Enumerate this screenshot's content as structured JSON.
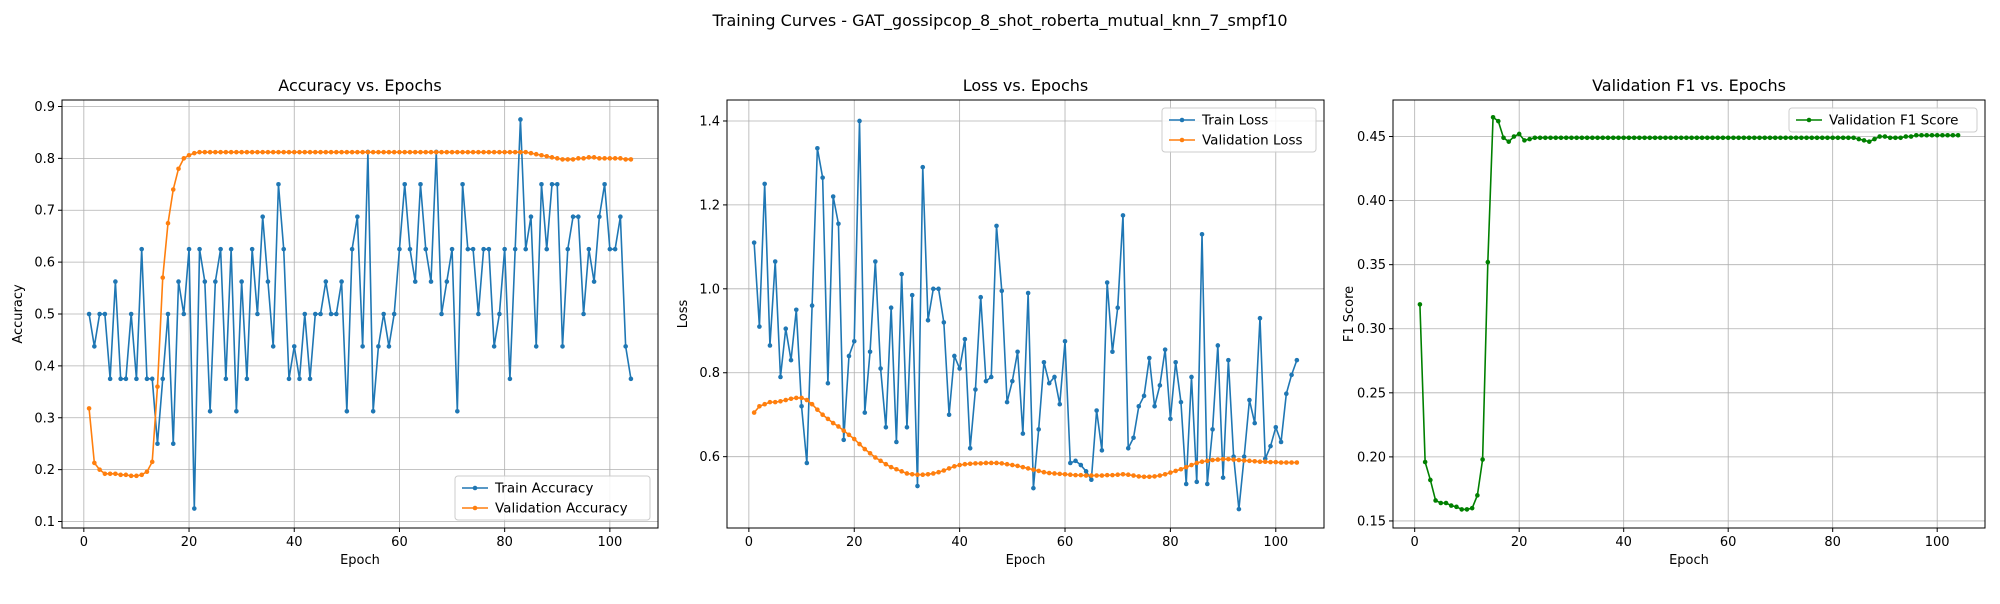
{
  "figure": {
    "suptitle": "Training Curves - GAT_gossipcop_8_shot_roberta_mutual_knn_7_smpf10"
  },
  "colors": {
    "train": "#1f77b4",
    "validation": "#ff7f0e",
    "f1": "#008000",
    "grid": "#b0b0b0",
    "axes": "#000000"
  },
  "chart_data": [
    {
      "type": "line",
      "title": "Accuracy vs. Epochs",
      "xlabel": "Epoch",
      "ylabel": "Accuracy",
      "xlim": [
        -4.15,
        109.15
      ],
      "ylim": [
        0.0875,
        0.9125
      ],
      "xticks": [
        0,
        20,
        40,
        60,
        80,
        100
      ],
      "yticks": [
        0.1,
        0.2,
        0.3,
        0.4,
        0.5,
        0.6,
        0.7,
        0.8,
        0.9
      ],
      "ytick_labels": [
        "0.1",
        "0.2",
        "0.3",
        "0.4",
        "0.5",
        "0.6",
        "0.7",
        "0.8",
        "0.9"
      ],
      "grid": true,
      "legend": "lower right",
      "x": [
        1,
        2,
        3,
        4,
        5,
        6,
        7,
        8,
        9,
        10,
        11,
        12,
        13,
        14,
        15,
        16,
        17,
        18,
        19,
        20,
        21,
        22,
        23,
        24,
        25,
        26,
        27,
        28,
        29,
        30,
        31,
        32,
        33,
        34,
        35,
        36,
        37,
        38,
        39,
        40,
        41,
        42,
        43,
        44,
        45,
        46,
        47,
        48,
        49,
        50,
        51,
        52,
        53,
        54,
        55,
        56,
        57,
        58,
        59,
        60,
        61,
        62,
        63,
        64,
        65,
        66,
        67,
        68,
        69,
        70,
        71,
        72,
        73,
        74,
        75,
        76,
        77,
        78,
        79,
        80,
        81,
        82,
        83,
        84,
        85,
        86,
        87,
        88,
        89,
        90,
        91,
        92,
        93,
        94,
        95,
        96,
        97,
        98,
        99,
        100,
        101,
        102,
        103,
        104
      ],
      "series": [
        {
          "name": "Train Accuracy",
          "color": "#1f77b4",
          "values": [
            0.5,
            0.4375,
            0.5,
            0.5,
            0.375,
            0.5625,
            0.375,
            0.375,
            0.5,
            0.375,
            0.625,
            0.375,
            0.375,
            0.25,
            0.375,
            0.5,
            0.25,
            0.5625,
            0.5,
            0.625,
            0.125,
            0.625,
            0.5625,
            0.3125,
            0.5625,
            0.625,
            0.375,
            0.625,
            0.3125,
            0.5625,
            0.375,
            0.625,
            0.5,
            0.6875,
            0.5625,
            0.4375,
            0.75,
            0.625,
            0.375,
            0.4375,
            0.375,
            0.5,
            0.375,
            0.5,
            0.5,
            0.5625,
            0.5,
            0.5,
            0.5625,
            0.3125,
            0.625,
            0.6875,
            0.4375,
            0.8125,
            0.3125,
            0.4375,
            0.5,
            0.4375,
            0.5,
            0.625,
            0.75,
            0.625,
            0.5625,
            0.75,
            0.625,
            0.5625,
            0.8125,
            0.5,
            0.5625,
            0.625,
            0.3125,
            0.75,
            0.625,
            0.625,
            0.5,
            0.625,
            0.625,
            0.4375,
            0.5,
            0.625,
            0.375,
            0.625,
            0.875,
            0.625,
            0.6875,
            0.4375,
            0.75,
            0.625,
            0.75,
            0.75,
            0.4375,
            0.625,
            0.6875,
            0.6875,
            0.5,
            0.625,
            0.5625,
            0.6875,
            0.75,
            0.625,
            0.625,
            0.6875,
            0.4375,
            0.375
          ]
        },
        {
          "name": "Validation Accuracy",
          "color": "#ff7f0e",
          "values": [
            0.318,
            0.213,
            0.2,
            0.192,
            0.192,
            0.192,
            0.19,
            0.19,
            0.188,
            0.188,
            0.19,
            0.196,
            0.215,
            0.36,
            0.57,
            0.675,
            0.74,
            0.78,
            0.8,
            0.806,
            0.81,
            0.812,
            0.812,
            0.812,
            0.812,
            0.812,
            0.812,
            0.812,
            0.812,
            0.812,
            0.812,
            0.812,
            0.812,
            0.812,
            0.812,
            0.812,
            0.812,
            0.812,
            0.812,
            0.812,
            0.812,
            0.812,
            0.812,
            0.812,
            0.812,
            0.812,
            0.812,
            0.812,
            0.812,
            0.812,
            0.812,
            0.812,
            0.812,
            0.812,
            0.812,
            0.812,
            0.812,
            0.812,
            0.812,
            0.812,
            0.812,
            0.812,
            0.812,
            0.812,
            0.812,
            0.812,
            0.812,
            0.812,
            0.812,
            0.812,
            0.812,
            0.812,
            0.812,
            0.812,
            0.812,
            0.812,
            0.812,
            0.812,
            0.812,
            0.812,
            0.812,
            0.812,
            0.812,
            0.812,
            0.81,
            0.808,
            0.806,
            0.804,
            0.802,
            0.8,
            0.798,
            0.798,
            0.798,
            0.8,
            0.8,
            0.802,
            0.802,
            0.8,
            0.8,
            0.8,
            0.8,
            0.8,
            0.798,
            0.798
          ]
        }
      ]
    },
    {
      "type": "line",
      "title": "Loss vs. Epochs",
      "xlabel": "Epoch",
      "ylabel": "Loss",
      "xlim": [
        -4.15,
        109.15
      ],
      "ylim": [
        0.43,
        1.45
      ],
      "xticks": [
        0,
        20,
        40,
        60,
        80,
        100
      ],
      "yticks": [
        0.6,
        0.8,
        1.0,
        1.2,
        1.4
      ],
      "ytick_labels": [
        "0.6",
        "0.8",
        "1.0",
        "1.2",
        "1.4"
      ],
      "grid": true,
      "legend": "upper right",
      "x": [
        1,
        2,
        3,
        4,
        5,
        6,
        7,
        8,
        9,
        10,
        11,
        12,
        13,
        14,
        15,
        16,
        17,
        18,
        19,
        20,
        21,
        22,
        23,
        24,
        25,
        26,
        27,
        28,
        29,
        30,
        31,
        32,
        33,
        34,
        35,
        36,
        37,
        38,
        39,
        40,
        41,
        42,
        43,
        44,
        45,
        46,
        47,
        48,
        49,
        50,
        51,
        52,
        53,
        54,
        55,
        56,
        57,
        58,
        59,
        60,
        61,
        62,
        63,
        64,
        65,
        66,
        67,
        68,
        69,
        70,
        71,
        72,
        73,
        74,
        75,
        76,
        77,
        78,
        79,
        80,
        81,
        82,
        83,
        84,
        85,
        86,
        87,
        88,
        89,
        90,
        91,
        92,
        93,
        94,
        95,
        96,
        97,
        98,
        99,
        100,
        101,
        102,
        103,
        104
      ],
      "series": [
        {
          "name": "Train Loss",
          "color": "#1f77b4",
          "values": [
            1.11,
            0.91,
            1.25,
            0.865,
            1.065,
            0.79,
            0.905,
            0.83,
            0.95,
            0.72,
            0.585,
            0.96,
            1.335,
            1.265,
            0.775,
            1.22,
            1.155,
            0.64,
            0.84,
            0.875,
            1.4,
            0.705,
            0.85,
            1.065,
            0.81,
            0.67,
            0.955,
            0.635,
            1.035,
            0.67,
            0.985,
            0.53,
            1.29,
            0.925,
            1.0,
            1.0,
            0.92,
            0.7,
            0.84,
            0.81,
            0.88,
            0.62,
            0.76,
            0.98,
            0.78,
            0.79,
            1.15,
            0.995,
            0.73,
            0.78,
            0.85,
            0.655,
            0.99,
            0.525,
            0.665,
            0.825,
            0.775,
            0.79,
            0.725,
            0.875,
            0.585,
            0.59,
            0.58,
            0.565,
            0.545,
            0.71,
            0.615,
            1.015,
            0.85,
            0.955,
            1.175,
            0.62,
            0.645,
            0.72,
            0.745,
            0.835,
            0.72,
            0.77,
            0.855,
            0.69,
            0.825,
            0.73,
            0.535,
            0.79,
            0.54,
            1.13,
            0.535,
            0.665,
            0.865,
            0.55,
            0.83,
            0.6,
            0.475,
            0.6,
            0.735,
            0.68,
            0.93,
            0.595,
            0.625,
            0.67,
            0.635,
            0.75,
            0.795,
            0.83
          ]
        },
        {
          "name": "Validation Loss",
          "color": "#ff7f0e",
          "values": [
            0.705,
            0.72,
            0.725,
            0.73,
            0.73,
            0.732,
            0.735,
            0.738,
            0.74,
            0.74,
            0.735,
            0.725,
            0.712,
            0.7,
            0.69,
            0.68,
            0.672,
            0.662,
            0.652,
            0.642,
            0.63,
            0.618,
            0.608,
            0.598,
            0.59,
            0.582,
            0.575,
            0.57,
            0.565,
            0.56,
            0.558,
            0.557,
            0.557,
            0.558,
            0.56,
            0.563,
            0.567,
            0.572,
            0.577,
            0.58,
            0.582,
            0.583,
            0.584,
            0.584,
            0.585,
            0.585,
            0.585,
            0.584,
            0.582,
            0.58,
            0.578,
            0.575,
            0.572,
            0.569,
            0.566,
            0.563,
            0.561,
            0.56,
            0.559,
            0.558,
            0.557,
            0.556,
            0.556,
            0.555,
            0.555,
            0.555,
            0.555,
            0.556,
            0.556,
            0.557,
            0.558,
            0.557,
            0.555,
            0.553,
            0.552,
            0.552,
            0.553,
            0.555,
            0.558,
            0.562,
            0.566,
            0.57,
            0.575,
            0.58,
            0.585,
            0.588,
            0.59,
            0.592,
            0.593,
            0.594,
            0.594,
            0.593,
            0.592,
            0.591,
            0.59,
            0.589,
            0.588,
            0.588,
            0.587,
            0.587,
            0.586,
            0.586,
            0.586,
            0.586
          ]
        }
      ]
    },
    {
      "type": "line",
      "title": "Validation F1 vs. Epochs",
      "xlabel": "Epoch",
      "ylabel": "F1 Score",
      "xlim": [
        -4.15,
        109.15
      ],
      "ylim": [
        0.1445,
        0.4785
      ],
      "xticks": [
        0,
        20,
        40,
        60,
        80,
        100
      ],
      "yticks": [
        0.15,
        0.2,
        0.25,
        0.3,
        0.35,
        0.4,
        0.45
      ],
      "ytick_labels": [
        "0.15",
        "0.20",
        "0.25",
        "0.30",
        "0.35",
        "0.40",
        "0.45"
      ],
      "grid": true,
      "legend": "upper right",
      "x": [
        1,
        2,
        3,
        4,
        5,
        6,
        7,
        8,
        9,
        10,
        11,
        12,
        13,
        14,
        15,
        16,
        17,
        18,
        19,
        20,
        21,
        22,
        23,
        24,
        25,
        26,
        27,
        28,
        29,
        30,
        31,
        32,
        33,
        34,
        35,
        36,
        37,
        38,
        39,
        40,
        41,
        42,
        43,
        44,
        45,
        46,
        47,
        48,
        49,
        50,
        51,
        52,
        53,
        54,
        55,
        56,
        57,
        58,
        59,
        60,
        61,
        62,
        63,
        64,
        65,
        66,
        67,
        68,
        69,
        70,
        71,
        72,
        73,
        74,
        75,
        76,
        77,
        78,
        79,
        80,
        81,
        82,
        83,
        84,
        85,
        86,
        87,
        88,
        89,
        90,
        91,
        92,
        93,
        94,
        95,
        96,
        97,
        98,
        99,
        100,
        101,
        102,
        103,
        104
      ],
      "series": [
        {
          "name": "Validation F1 Score",
          "color": "#008000",
          "values": [
            0.319,
            0.196,
            0.182,
            0.166,
            0.164,
            0.164,
            0.162,
            0.161,
            0.159,
            0.159,
            0.16,
            0.17,
            0.198,
            0.352,
            0.465,
            0.462,
            0.449,
            0.446,
            0.45,
            0.452,
            0.447,
            0.448,
            0.449,
            0.449,
            0.449,
            0.449,
            0.449,
            0.449,
            0.449,
            0.449,
            0.449,
            0.449,
            0.449,
            0.449,
            0.449,
            0.449,
            0.449,
            0.449,
            0.449,
            0.449,
            0.449,
            0.449,
            0.449,
            0.449,
            0.449,
            0.449,
            0.449,
            0.449,
            0.449,
            0.449,
            0.449,
            0.449,
            0.449,
            0.449,
            0.449,
            0.449,
            0.449,
            0.449,
            0.449,
            0.449,
            0.449,
            0.449,
            0.449,
            0.449,
            0.449,
            0.449,
            0.449,
            0.449,
            0.449,
            0.449,
            0.449,
            0.449,
            0.449,
            0.449,
            0.449,
            0.449,
            0.449,
            0.449,
            0.449,
            0.449,
            0.449,
            0.449,
            0.449,
            0.449,
            0.448,
            0.447,
            0.446,
            0.448,
            0.45,
            0.45,
            0.449,
            0.449,
            0.449,
            0.45,
            0.45,
            0.451,
            0.451,
            0.451,
            0.451,
            0.451,
            0.451,
            0.451,
            0.451,
            0.451
          ]
        }
      ]
    }
  ]
}
